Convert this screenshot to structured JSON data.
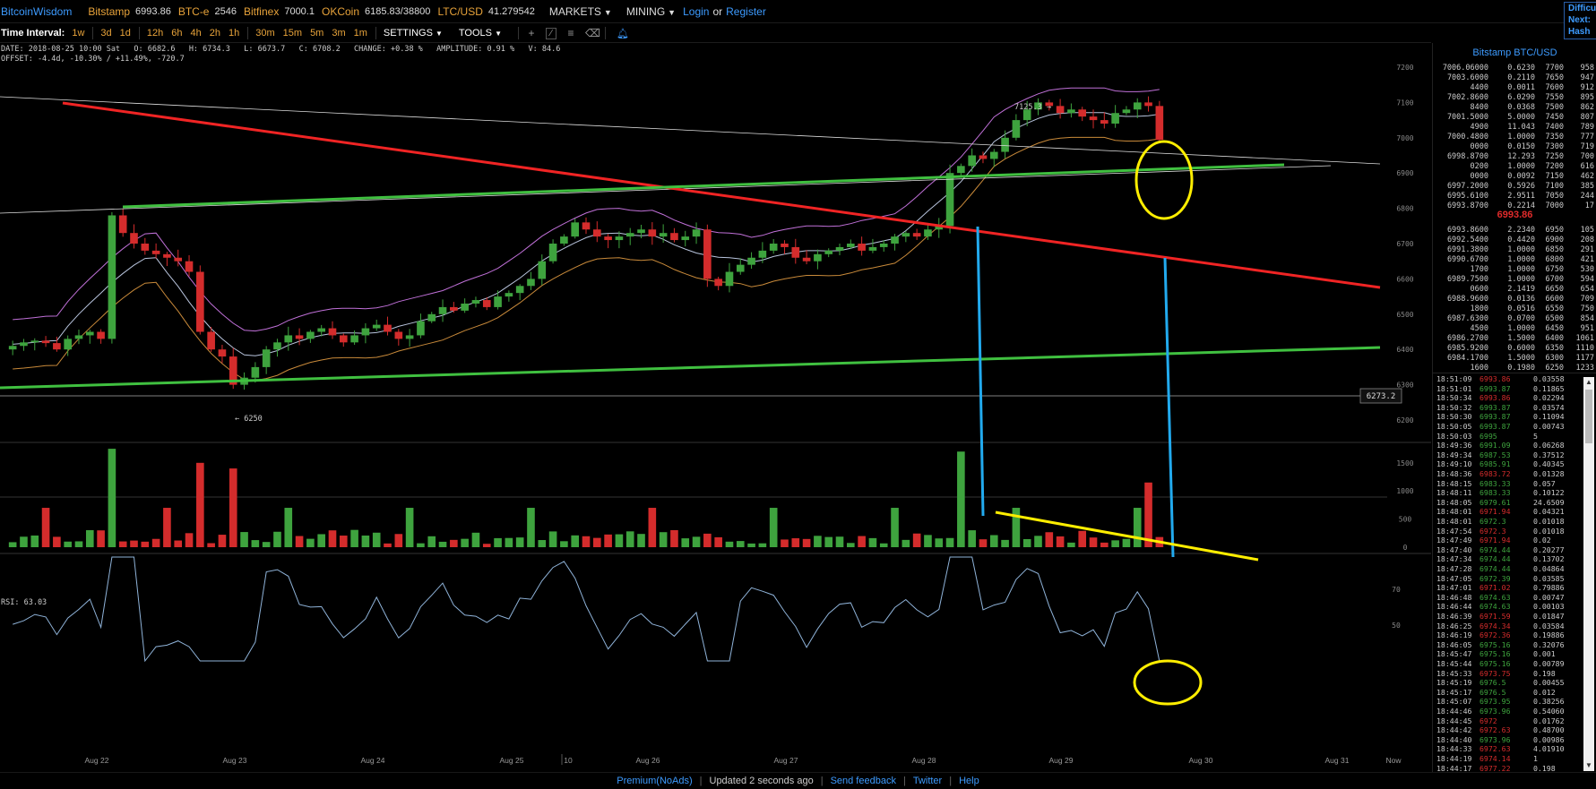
{
  "topbar": {
    "brand": "BitcoinWisdom",
    "markets": [
      {
        "name": "Bitstamp",
        "price": "6993.86"
      },
      {
        "name": "BTC-e",
        "price": "2546"
      },
      {
        "name": "Bitfinex",
        "price": "7000.1"
      },
      {
        "name": "OKCoin",
        "price": "6185.83/38800"
      },
      {
        "name": "LTC/USD",
        "price": "41.279542"
      }
    ],
    "menu_markets": "MARKETS",
    "menu_mining": "MINING",
    "login": "Login",
    "or": "or",
    "register": "Register",
    "right_box": [
      "Difficu",
      "Next:",
      "Hash R"
    ]
  },
  "toolbar": {
    "time_interval_label": "Time Interval:",
    "intervals": [
      "1w",
      "3d",
      "1d",
      "12h",
      "6h",
      "4h",
      "2h",
      "1h",
      "30m",
      "15m",
      "5m",
      "3m",
      "1m"
    ],
    "settings": "SETTINGS",
    "tools": "TOOLS"
  },
  "info": {
    "line1": "DATE: 2018-08-25 10:00 Sat   O: 6682.6   H: 6734.3   L: 6673.7   C: 6708.2   CHANGE: +0.38 %   AMPLITUDE: 0.91 %   V: 84.6",
    "line2": "OFFSET: -4.4d, -10.30% / +11.49%, -720.7"
  },
  "chart_data": {
    "type": "candlestick",
    "price_axis_ticks": [
      6200,
      6300,
      6400,
      6500,
      6600,
      6700,
      6800,
      6900,
      7000,
      7100,
      7200
    ],
    "volume_axis_ticks": [
      0,
      500,
      1000,
      1500
    ],
    "rsi_axis_ticks": [
      50,
      70
    ],
    "rsi_label": "RSI: 63.03",
    "x_labels": [
      "Aug 22",
      "Aug 23",
      "Aug 24",
      "Aug 25",
      "10",
      "Aug 26",
      "Aug 27",
      "Aug 28",
      "Aug 29",
      "Aug 30",
      "Aug 31",
      "Now"
    ],
    "high_marker": "7125.3",
    "low_marker": "6250",
    "cursor_price": "6273.2",
    "close_series": [
      6410,
      6420,
      6425,
      6418,
      6400,
      6430,
      6440,
      6450,
      6430,
      6780,
      6730,
      6700,
      6680,
      6670,
      6660,
      6650,
      6620,
      6450,
      6400,
      6380,
      6300,
      6320,
      6350,
      6400,
      6420,
      6440,
      6430,
      6450,
      6460,
      6440,
      6420,
      6440,
      6460,
      6470,
      6450,
      6430,
      6440,
      6480,
      6500,
      6520,
      6510,
      6530,
      6540,
      6520,
      6550,
      6560,
      6580,
      6600,
      6650,
      6700,
      6720,
      6760,
      6740,
      6720,
      6710,
      6720,
      6730,
      6740,
      6720,
      6730,
      6710,
      6720,
      6740,
      6600,
      6580,
      6620,
      6640,
      6660,
      6680,
      6700,
      6690,
      6660,
      6650,
      6670,
      6680,
      6690,
      6700,
      6680,
      6690,
      6700,
      6720,
      6730,
      6720,
      6740,
      6750,
      6900,
      6920,
      6950,
      6940,
      6960,
      7000,
      7050,
      7080,
      7100,
      7090,
      7070,
      7080,
      7060,
      7050,
      7040,
      7070,
      7080,
      7100,
      7090,
      6994
    ]
  },
  "sidebar": {
    "title": "Bitstamp BTC/USD",
    "asks": [
      [
        "7006.06000",
        "0.6230",
        "7700",
        "958"
      ],
      [
        "7003.6000",
        "0.2110",
        "7650",
        "947"
      ],
      [
        "4400",
        "0.0011",
        "7600",
        "912"
      ],
      [
        "7002.8600",
        "6.0290",
        "7550",
        "895"
      ],
      [
        "8400",
        "0.0368",
        "7500",
        "862"
      ],
      [
        "7001.5000",
        "5.0000",
        "7450",
        "807"
      ],
      [
        "4900",
        "11.043",
        "7400",
        "789"
      ],
      [
        "7000.4800",
        "1.0000",
        "7350",
        "777"
      ],
      [
        "0000",
        "0.0150",
        "7300",
        "719"
      ],
      [
        "6998.8700",
        "12.293",
        "7250",
        "700"
      ],
      [
        "0200",
        "1.0000",
        "7200",
        "616"
      ],
      [
        "0000",
        "0.0092",
        "7150",
        "462"
      ],
      [
        "6997.2000",
        "0.5926",
        "7100",
        "385"
      ],
      [
        "6995.6100",
        "2.9511",
        "7050",
        "244"
      ],
      [
        "6993.8700",
        "0.2214",
        "7000",
        "17"
      ]
    ],
    "last_price": "6993.86",
    "bids": [
      [
        "6993.8600",
        "2.2340",
        "6950",
        "105"
      ],
      [
        "6992.5400",
        "0.4420",
        "6900",
        "208"
      ],
      [
        "6991.3800",
        "1.0000",
        "6850",
        "291"
      ],
      [
        "6990.6700",
        "1.0000",
        "6800",
        "421"
      ],
      [
        "1700",
        "1.0000",
        "6750",
        "530"
      ],
      [
        "6989.7500",
        "1.0000",
        "6700",
        "594"
      ],
      [
        "0600",
        "2.1419",
        "6650",
        "654"
      ],
      [
        "6988.9600",
        "0.0136",
        "6600",
        "709"
      ],
      [
        "1800",
        "0.0516",
        "6550",
        "750"
      ],
      [
        "6987.6300",
        "0.0700",
        "6500",
        "854"
      ],
      [
        "4500",
        "1.0000",
        "6450",
        "951"
      ],
      [
        "6986.2700",
        "1.5000",
        "6400",
        "1061"
      ],
      [
        "6985.9200",
        "0.6000",
        "6350",
        "1110"
      ],
      [
        "6984.1700",
        "1.5000",
        "6300",
        "1177"
      ],
      [
        "1600",
        "0.1980",
        "6250",
        "1233"
      ]
    ],
    "trades": [
      [
        "18:51:09",
        "6993.86",
        "0.03558",
        "red"
      ],
      [
        "18:51:01",
        "6993.87",
        "0.11865",
        "green"
      ],
      [
        "18:50:34",
        "6993.86",
        "0.02294",
        "red"
      ],
      [
        "18:50:32",
        "6993.87",
        "0.03574",
        "green"
      ],
      [
        "18:50:30",
        "6993.87",
        "0.11094",
        "green"
      ],
      [
        "18:50:05",
        "6993.87",
        "0.00743",
        "green"
      ],
      [
        "18:50:03",
        "6995",
        "5",
        "green"
      ],
      [
        "18:49:36",
        "6991.09",
        "0.06268",
        "green"
      ],
      [
        "18:49:34",
        "6987.53",
        "0.37512",
        "green"
      ],
      [
        "18:49:10",
        "6985.91",
        "0.40345",
        "green"
      ],
      [
        "18:48:36",
        "6983.72",
        "0.01328",
        "red"
      ],
      [
        "18:48:15",
        "6983.33",
        "0.057",
        "green"
      ],
      [
        "18:48:11",
        "6983.33",
        "0.10122",
        "green"
      ],
      [
        "18:48:05",
        "6979.61",
        "24.6509",
        "green"
      ],
      [
        "18:48:01",
        "6971.94",
        "0.04321",
        "red"
      ],
      [
        "18:48:01",
        "6972.3",
        "0.01018",
        "green"
      ],
      [
        "18:47:54",
        "6972.3",
        "0.01018",
        "red"
      ],
      [
        "18:47:49",
        "6971.94",
        "0.02",
        "red"
      ],
      [
        "18:47:40",
        "6974.44",
        "0.20277",
        "green"
      ],
      [
        "18:47:34",
        "6974.44",
        "0.13702",
        "green"
      ],
      [
        "18:47:28",
        "6974.44",
        "0.04864",
        "green"
      ],
      [
        "18:47:05",
        "6972.39",
        "0.03585",
        "green"
      ],
      [
        "18:47:01",
        "6971.02",
        "0.79886",
        "red"
      ],
      [
        "18:46:48",
        "6974.63",
        "0.00747",
        "green"
      ],
      [
        "18:46:44",
        "6974.63",
        "0.00103",
        "green"
      ],
      [
        "18:46:39",
        "6971.59",
        "0.01847",
        "red"
      ],
      [
        "18:46:25",
        "6974.34",
        "0.03584",
        "red"
      ],
      [
        "18:46:19",
        "6972.36",
        "0.19886",
        "red"
      ],
      [
        "18:46:05",
        "6975.16",
        "0.32076",
        "green"
      ],
      [
        "18:45:47",
        "6975.16",
        "0.001",
        "green"
      ],
      [
        "18:45:44",
        "6975.16",
        "0.00789",
        "green"
      ],
      [
        "18:45:33",
        "6973.75",
        "0.198",
        "red"
      ],
      [
        "18:45:19",
        "6976.5",
        "0.00455",
        "green"
      ],
      [
        "18:45:17",
        "6976.5",
        "0.012",
        "green"
      ],
      [
        "18:45:07",
        "6973.95",
        "0.38256",
        "green"
      ],
      [
        "18:44:46",
        "6973.96",
        "0.54060",
        "green"
      ],
      [
        "18:44:45",
        "6972",
        "0.01762",
        "red"
      ],
      [
        "18:44:42",
        "6972.63",
        "0.48700",
        "red"
      ],
      [
        "18:44:40",
        "6973.96",
        "0.00986",
        "green"
      ],
      [
        "18:44:33",
        "6972.63",
        "4.01910",
        "red"
      ],
      [
        "18:44:19",
        "6974.14",
        "1",
        "red"
      ],
      [
        "18:44:17",
        "6977.22",
        "0.198",
        "red"
      ]
    ]
  },
  "footer": {
    "premium": "Premium(NoAds)",
    "updated": "Updated 2 seconds ago",
    "feedback": "Send feedback",
    "twitter": "Twitter",
    "help": "Help"
  },
  "colors": {
    "up": "#3ea33e",
    "down": "#d42c2c",
    "link": "#3d9bff",
    "accent": "#e8a33a",
    "boll_upper": "#c070d8",
    "boll_lower": "#c98a3a",
    "ma": "#b8c4dd",
    "rsi": "#8fb3d9",
    "annot_red": "#f02424",
    "annot_green": "#40c040",
    "annot_blue": "#22aaee",
    "annot_yellow": "#ffee00"
  }
}
